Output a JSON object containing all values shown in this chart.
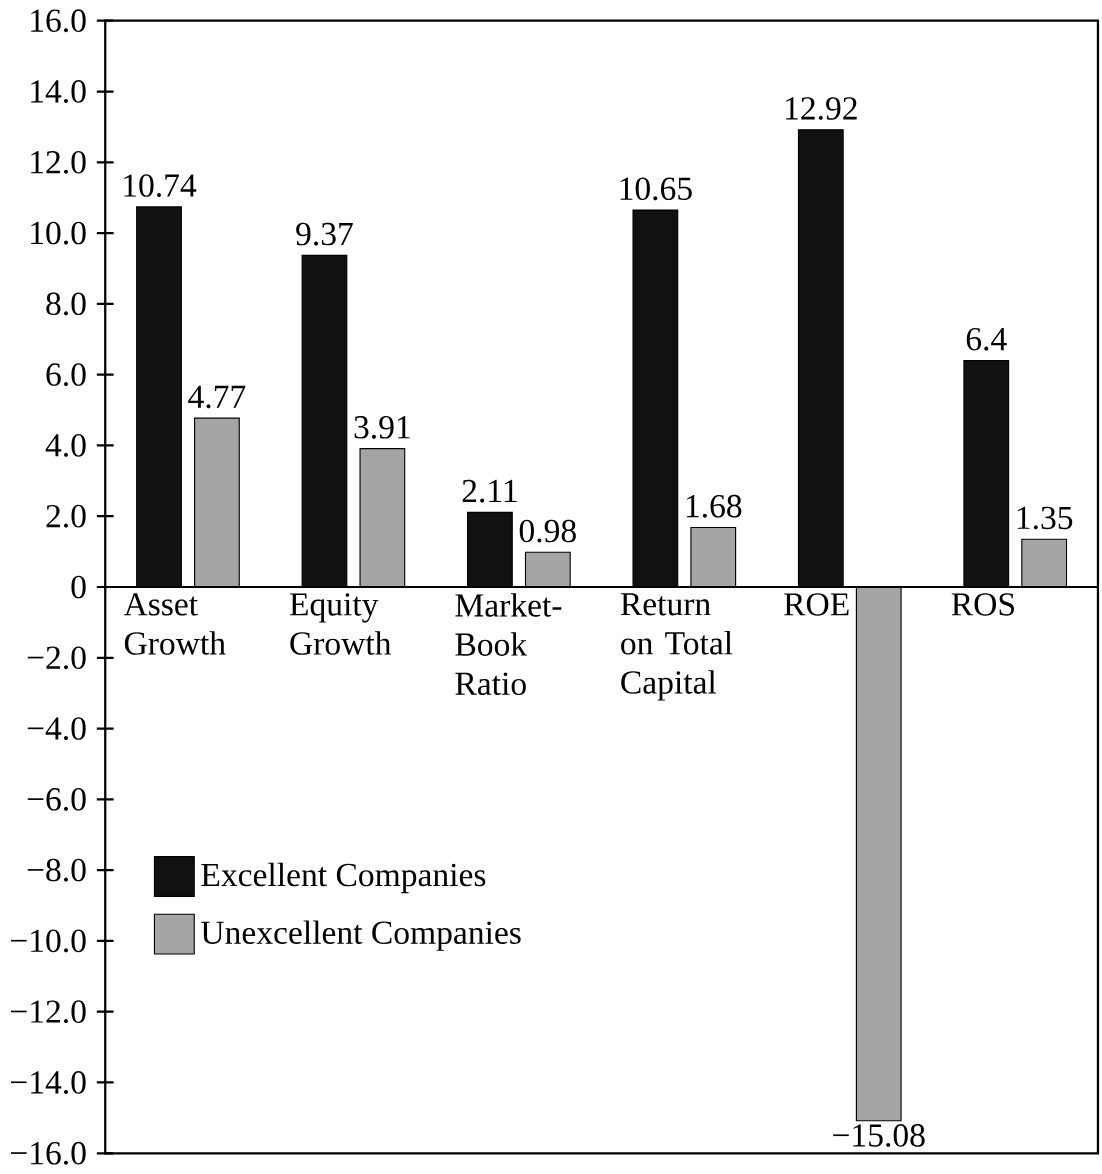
{
  "chart_data": {
    "type": "bar",
    "categories": [
      "Asset Growth",
      "Equity Growth",
      "Market-Book Ratio",
      "Return on Total Capital",
      "ROE",
      "ROS"
    ],
    "series": [
      {
        "name": "Excellent Companies",
        "color": "#111111",
        "values": [
          10.74,
          9.37,
          2.11,
          10.65,
          12.92,
          6.4
        ],
        "value_labels": [
          "10.74",
          "9.37",
          "2.11",
          "10.65",
          "12.92",
          "6.4"
        ]
      },
      {
        "name": "Unexcellent Companies",
        "color": "#a5a5a5",
        "values": [
          4.77,
          3.91,
          0.98,
          1.68,
          -15.08,
          1.35
        ],
        "value_labels": [
          "4.77",
          "3.91",
          "0.98",
          "1.68",
          "−15.08",
          "1.35"
        ]
      }
    ],
    "ylim": [
      -16,
      16
    ],
    "yticks": [
      {
        "value": -16,
        "label": "−16.0"
      },
      {
        "value": -14,
        "label": "−14.0"
      },
      {
        "value": -12,
        "label": "−12.0"
      },
      {
        "value": -10,
        "label": "−10.0"
      },
      {
        "value": -8,
        "label": "−8.0"
      },
      {
        "value": -6,
        "label": "−6.0"
      },
      {
        "value": -4,
        "label": "−4.0"
      },
      {
        "value": -2,
        "label": "−2.0"
      },
      {
        "value": 0,
        "label": "0"
      },
      {
        "value": 2,
        "label": "2.0"
      },
      {
        "value": 4,
        "label": "4.0"
      },
      {
        "value": 6,
        "label": "6.0"
      },
      {
        "value": 8,
        "label": "8.0"
      },
      {
        "value": 10,
        "label": "10.0"
      },
      {
        "value": 12,
        "label": "12.0"
      },
      {
        "value": 14,
        "label": "14.0"
      },
      {
        "value": 16,
        "label": "16.0"
      }
    ],
    "legend": "bottom left",
    "grid": false
  }
}
